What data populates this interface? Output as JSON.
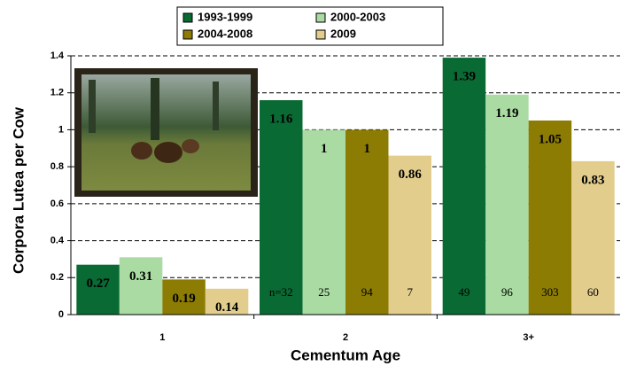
{
  "chart_data": {
    "type": "bar",
    "x_label": "Cementum Age",
    "y_label": "Corpora Lutea per Cow",
    "categories": [
      "1",
      "2",
      "3+"
    ],
    "series": [
      {
        "name": "1993-1999",
        "color": "#0a6a34",
        "values": [
          0.27,
          1.16,
          1.39
        ],
        "sample_sizes": [
          null,
          "n=32",
          "49"
        ]
      },
      {
        "name": "2000-2003",
        "color": "#a9dba2",
        "values": [
          0.31,
          1,
          1.19
        ],
        "sample_sizes": [
          null,
          "25",
          "96"
        ]
      },
      {
        "name": "2004-2008",
        "color": "#8c7c04",
        "values": [
          0.19,
          1,
          1.05
        ],
        "sample_sizes": [
          null,
          "94",
          "303"
        ]
      },
      {
        "name": "2009",
        "color": "#e2cd8c",
        "values": [
          0.14,
          0.86,
          0.83
        ],
        "sample_sizes": [
          null,
          "7",
          "60"
        ]
      }
    ],
    "ylim": [
      0,
      1.4
    ],
    "yticks": [
      0,
      0.2,
      0.4,
      0.6,
      0.8,
      1,
      1.2,
      1.4
    ],
    "grid": true
  }
}
